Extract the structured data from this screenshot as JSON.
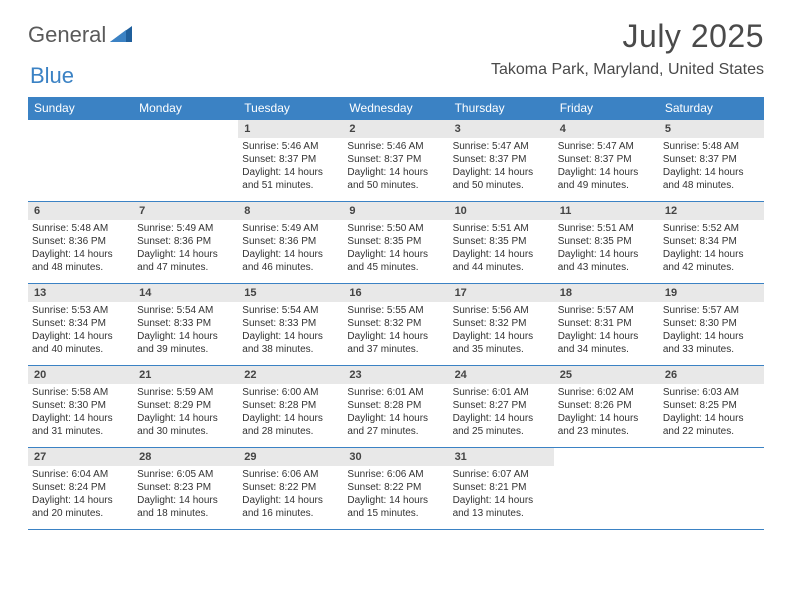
{
  "logo": {
    "general": "General",
    "blue": "Blue"
  },
  "header": {
    "month_title": "July 2025",
    "location": "Takoma Park, Maryland, United States"
  },
  "calendar": {
    "type": "table",
    "columns": [
      "Sunday",
      "Monday",
      "Tuesday",
      "Wednesday",
      "Thursday",
      "Friday",
      "Saturday"
    ],
    "column_widths_pct": [
      14.28,
      14.28,
      14.28,
      14.28,
      14.28,
      14.28,
      14.28
    ],
    "header_bg": "#3b82c4",
    "header_text_color": "#ffffff",
    "daynum_bg": "#e8e8e8",
    "border_color": "#3b82c4",
    "body_bg": "#ffffff",
    "text_color": "#333333",
    "font_family": "Arial",
    "daynum_fontsize": 11,
    "detail_fontsize": 10,
    "weeks": [
      [
        null,
        null,
        {
          "day": "1",
          "sunrise": "Sunrise: 5:46 AM",
          "sunset": "Sunset: 8:37 PM",
          "daylight": "Daylight: 14 hours and 51 minutes."
        },
        {
          "day": "2",
          "sunrise": "Sunrise: 5:46 AM",
          "sunset": "Sunset: 8:37 PM",
          "daylight": "Daylight: 14 hours and 50 minutes."
        },
        {
          "day": "3",
          "sunrise": "Sunrise: 5:47 AM",
          "sunset": "Sunset: 8:37 PM",
          "daylight": "Daylight: 14 hours and 50 minutes."
        },
        {
          "day": "4",
          "sunrise": "Sunrise: 5:47 AM",
          "sunset": "Sunset: 8:37 PM",
          "daylight": "Daylight: 14 hours and 49 minutes."
        },
        {
          "day": "5",
          "sunrise": "Sunrise: 5:48 AM",
          "sunset": "Sunset: 8:37 PM",
          "daylight": "Daylight: 14 hours and 48 minutes."
        }
      ],
      [
        {
          "day": "6",
          "sunrise": "Sunrise: 5:48 AM",
          "sunset": "Sunset: 8:36 PM",
          "daylight": "Daylight: 14 hours and 48 minutes."
        },
        {
          "day": "7",
          "sunrise": "Sunrise: 5:49 AM",
          "sunset": "Sunset: 8:36 PM",
          "daylight": "Daylight: 14 hours and 47 minutes."
        },
        {
          "day": "8",
          "sunrise": "Sunrise: 5:49 AM",
          "sunset": "Sunset: 8:36 PM",
          "daylight": "Daylight: 14 hours and 46 minutes."
        },
        {
          "day": "9",
          "sunrise": "Sunrise: 5:50 AM",
          "sunset": "Sunset: 8:35 PM",
          "daylight": "Daylight: 14 hours and 45 minutes."
        },
        {
          "day": "10",
          "sunrise": "Sunrise: 5:51 AM",
          "sunset": "Sunset: 8:35 PM",
          "daylight": "Daylight: 14 hours and 44 minutes."
        },
        {
          "day": "11",
          "sunrise": "Sunrise: 5:51 AM",
          "sunset": "Sunset: 8:35 PM",
          "daylight": "Daylight: 14 hours and 43 minutes."
        },
        {
          "day": "12",
          "sunrise": "Sunrise: 5:52 AM",
          "sunset": "Sunset: 8:34 PM",
          "daylight": "Daylight: 14 hours and 42 minutes."
        }
      ],
      [
        {
          "day": "13",
          "sunrise": "Sunrise: 5:53 AM",
          "sunset": "Sunset: 8:34 PM",
          "daylight": "Daylight: 14 hours and 40 minutes."
        },
        {
          "day": "14",
          "sunrise": "Sunrise: 5:54 AM",
          "sunset": "Sunset: 8:33 PM",
          "daylight": "Daylight: 14 hours and 39 minutes."
        },
        {
          "day": "15",
          "sunrise": "Sunrise: 5:54 AM",
          "sunset": "Sunset: 8:33 PM",
          "daylight": "Daylight: 14 hours and 38 minutes."
        },
        {
          "day": "16",
          "sunrise": "Sunrise: 5:55 AM",
          "sunset": "Sunset: 8:32 PM",
          "daylight": "Daylight: 14 hours and 37 minutes."
        },
        {
          "day": "17",
          "sunrise": "Sunrise: 5:56 AM",
          "sunset": "Sunset: 8:32 PM",
          "daylight": "Daylight: 14 hours and 35 minutes."
        },
        {
          "day": "18",
          "sunrise": "Sunrise: 5:57 AM",
          "sunset": "Sunset: 8:31 PM",
          "daylight": "Daylight: 14 hours and 34 minutes."
        },
        {
          "day": "19",
          "sunrise": "Sunrise: 5:57 AM",
          "sunset": "Sunset: 8:30 PM",
          "daylight": "Daylight: 14 hours and 33 minutes."
        }
      ],
      [
        {
          "day": "20",
          "sunrise": "Sunrise: 5:58 AM",
          "sunset": "Sunset: 8:30 PM",
          "daylight": "Daylight: 14 hours and 31 minutes."
        },
        {
          "day": "21",
          "sunrise": "Sunrise: 5:59 AM",
          "sunset": "Sunset: 8:29 PM",
          "daylight": "Daylight: 14 hours and 30 minutes."
        },
        {
          "day": "22",
          "sunrise": "Sunrise: 6:00 AM",
          "sunset": "Sunset: 8:28 PM",
          "daylight": "Daylight: 14 hours and 28 minutes."
        },
        {
          "day": "23",
          "sunrise": "Sunrise: 6:01 AM",
          "sunset": "Sunset: 8:28 PM",
          "daylight": "Daylight: 14 hours and 27 minutes."
        },
        {
          "day": "24",
          "sunrise": "Sunrise: 6:01 AM",
          "sunset": "Sunset: 8:27 PM",
          "daylight": "Daylight: 14 hours and 25 minutes."
        },
        {
          "day": "25",
          "sunrise": "Sunrise: 6:02 AM",
          "sunset": "Sunset: 8:26 PM",
          "daylight": "Daylight: 14 hours and 23 minutes."
        },
        {
          "day": "26",
          "sunrise": "Sunrise: 6:03 AM",
          "sunset": "Sunset: 8:25 PM",
          "daylight": "Daylight: 14 hours and 22 minutes."
        }
      ],
      [
        {
          "day": "27",
          "sunrise": "Sunrise: 6:04 AM",
          "sunset": "Sunset: 8:24 PM",
          "daylight": "Daylight: 14 hours and 20 minutes."
        },
        {
          "day": "28",
          "sunrise": "Sunrise: 6:05 AM",
          "sunset": "Sunset: 8:23 PM",
          "daylight": "Daylight: 14 hours and 18 minutes."
        },
        {
          "day": "29",
          "sunrise": "Sunrise: 6:06 AM",
          "sunset": "Sunset: 8:22 PM",
          "daylight": "Daylight: 14 hours and 16 minutes."
        },
        {
          "day": "30",
          "sunrise": "Sunrise: 6:06 AM",
          "sunset": "Sunset: 8:22 PM",
          "daylight": "Daylight: 14 hours and 15 minutes."
        },
        {
          "day": "31",
          "sunrise": "Sunrise: 6:07 AM",
          "sunset": "Sunset: 8:21 PM",
          "daylight": "Daylight: 14 hours and 13 minutes."
        },
        null,
        null
      ]
    ]
  }
}
